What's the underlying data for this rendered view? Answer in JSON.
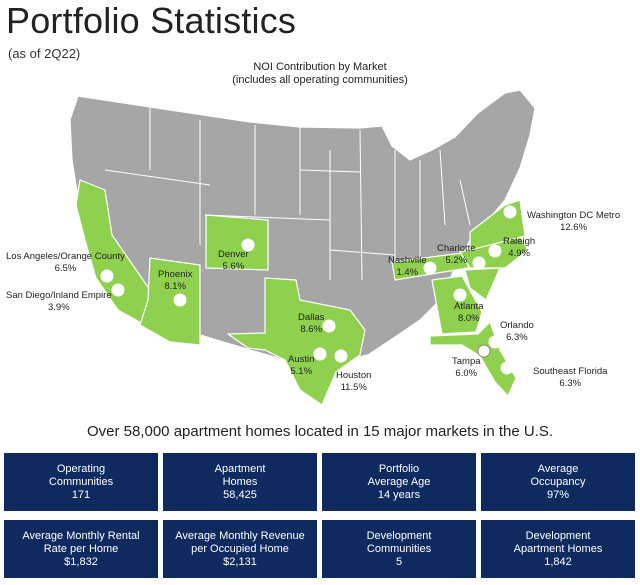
{
  "header": {
    "title": "Portfolio Statistics",
    "subtitle": "(as of 2Q22)"
  },
  "map": {
    "heading_line1": "NOI Contribution by Market",
    "heading_line2": "(includes all operating communities)",
    "highlight_color": "#8fd14f",
    "base_color": "#a6a6a6",
    "markets": [
      {
        "name": "Washington DC Metro",
        "value": "12.6%"
      },
      {
        "name": "Raleigh",
        "value": "4.9%"
      },
      {
        "name": "Charlotte",
        "value": "5.2%"
      },
      {
        "name": "Nashville",
        "value": "1.4%"
      },
      {
        "name": "Atlanta",
        "value": "8.0%"
      },
      {
        "name": "Orlando",
        "value": "6.3%"
      },
      {
        "name": "Tampa",
        "value": "6.0%"
      },
      {
        "name": "Southeast Florida",
        "value": "6.3%"
      },
      {
        "name": "Dallas",
        "value": "8.6%"
      },
      {
        "name": "Austin",
        "value": "5.1%"
      },
      {
        "name": "Houston",
        "value": "11.5%"
      },
      {
        "name": "Denver",
        "value": "5.6%"
      },
      {
        "name": "Phoenix",
        "value": "8.1%"
      },
      {
        "name": "Los Angeles/Orange County",
        "value": "6.5%"
      },
      {
        "name": "San Diego/Inland Empire",
        "value": "3.9%"
      }
    ]
  },
  "tagline": "Over 58,000 apartment homes located in 15 major markets in the U.S.",
  "stats": [
    {
      "line1": "Operating",
      "line2": "Communities",
      "value": "171"
    },
    {
      "line1": "Apartment",
      "line2": "Homes",
      "value": "58,425"
    },
    {
      "line1": "Portfolio",
      "line2": "Average Age",
      "value": "14 years"
    },
    {
      "line1": "Average",
      "line2": "Occupancy",
      "value": "97%"
    },
    {
      "line1": "Average Monthly Rental",
      "line2": "Rate per Home",
      "value": "$1,832"
    },
    {
      "line1": "Average Monthly Revenue",
      "line2": "per Occupied Home",
      "value": "$2,131"
    },
    {
      "line1": "Development",
      "line2": "Communities",
      "value": "5"
    },
    {
      "line1": "Development",
      "line2": "Apartment Homes",
      "value": "1,842"
    }
  ],
  "stat_box_color": "#0e2a5f"
}
